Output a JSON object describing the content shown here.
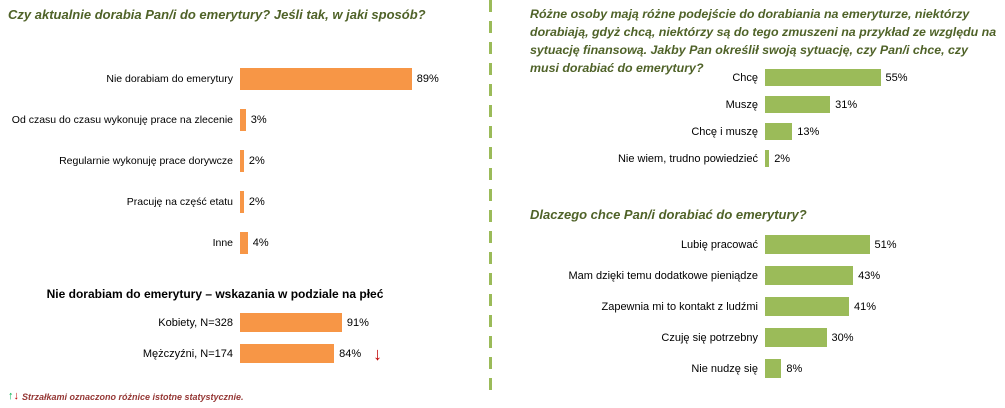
{
  "chart_data": [
    {
      "type": "bar",
      "orientation": "horizontal",
      "title": "Czy aktualnie dorabia Pan/i do emerytury? Jeśli tak, w jaki sposób?",
      "categories": [
        "Nie dorabiam do emerytury",
        "Od czasu do czasu wykonuję prace na zlecenie",
        "Regularnie wykonuję prace dorywcze",
        "Pracuję na część etatu",
        "Inne"
      ],
      "values": [
        89,
        3,
        2,
        2,
        4
      ],
      "unit": "%",
      "bar_color": "#F79646",
      "xlim": [
        0,
        100
      ],
      "grid": false,
      "value_labels": true,
      "legend": "none"
    },
    {
      "type": "bar",
      "orientation": "horizontal",
      "title": "Nie dorabiam do emerytury – wskazania w podziale na płeć",
      "categories": [
        "Kobiety, N=328",
        "Mężczyźni, N=174"
      ],
      "values": [
        91,
        84
      ],
      "annotations": [
        "",
        "down"
      ],
      "unit": "%",
      "bar_color": "#F79646",
      "xlim": [
        0,
        100
      ],
      "grid": false,
      "value_labels": true,
      "legend": "none"
    },
    {
      "type": "bar",
      "orientation": "horizontal",
      "title": "Różne osoby mają różne podejście do dorabiania na emeryturze, niektórzy dorabiają, gdyż chcą, niektórzy są do tego zmuszeni na przykład ze względu na sytuację finansową. Jakby Pan określił swoją sytuację, czy Pan/i chce, czy musi dorabiać do emerytury?",
      "categories": [
        "Chcę",
        "Muszę",
        "Chcę i muszę",
        "Nie wiem, trudno powiedzieć"
      ],
      "values": [
        55,
        31,
        13,
        2
      ],
      "unit": "%",
      "bar_color": "#9BBB59",
      "xlim": [
        0,
        100
      ],
      "grid": false,
      "value_labels": true,
      "legend": "none"
    },
    {
      "type": "bar",
      "orientation": "horizontal",
      "title": "Dlaczego chce Pan/i dorabiać do emerytury?",
      "categories": [
        "Lubię pracować",
        "Mam dzięki temu dodatkowe pieniądze",
        "Zapewnia mi to kontakt z ludźmi",
        "Czuję się potrzebny",
        "Nie nudzę się"
      ],
      "values": [
        51,
        43,
        41,
        30,
        8
      ],
      "unit": "%",
      "bar_color": "#9BBB59",
      "xlim": [
        0,
        100
      ],
      "grid": false,
      "value_labels": true,
      "legend": "none"
    }
  ],
  "footnote": {
    "text": "Strzałkami oznaczono różnice istotne statystycznie."
  },
  "icons": {
    "up_arrow": "↑",
    "down_arrow": "↓"
  },
  "colors": {
    "orange": "#F79646",
    "green": "#9BBB59",
    "title_green": "#4F6228",
    "arrow_red": "#C00000",
    "arrow_green": "#00B050",
    "footnote_red": "#953735",
    "divider_green": "#9BBB59"
  }
}
